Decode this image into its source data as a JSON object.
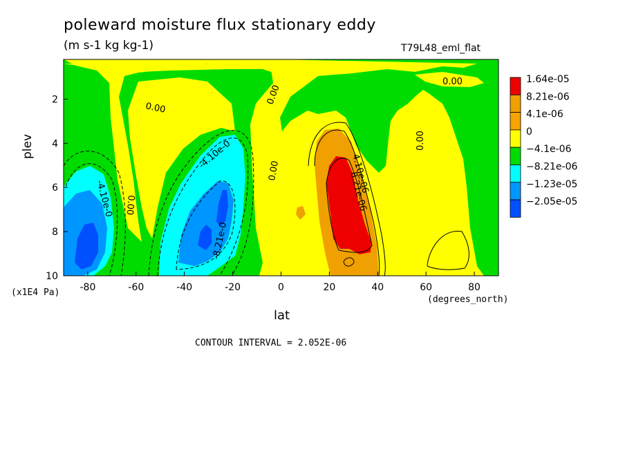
{
  "header": {
    "title": "poleward moisture flux stationary eddy",
    "units": "(m s-1 kg kg-1)",
    "dataset": "T79L48_eml_flat"
  },
  "axes": {
    "ylabel": "plev",
    "yunit": "(x1E4 Pa)",
    "xlabel": "lat",
    "xunit": "(degrees_north)"
  },
  "footer": {
    "contour_interval": "CONTOUR INTERVAL = 2.052E-06"
  },
  "chart_data": {
    "type": "heatmap",
    "title": "poleward moisture flux stationary eddy",
    "subtitle": "(m s-1 kg kg-1)",
    "xlabel": "lat",
    "ylabel": "plev",
    "xlim": [
      -90,
      90
    ],
    "ylim": [
      10,
      0.2
    ],
    "xticks": [
      -80,
      -60,
      -40,
      -20,
      0,
      20,
      40,
      60,
      80
    ],
    "yticks": [
      2,
      4,
      6,
      8,
      10
    ],
    "contour_interval": 2.052e-06,
    "legend": {
      "placement": "right",
      "levels": [
        {
          "label": "1.64e-05",
          "color": "#ee0000"
        },
        {
          "label": "8.21e-06",
          "color": "#f0a000"
        },
        {
          "label": "4.1e-06",
          "color": "#f7a300"
        },
        {
          "label": "0",
          "color": "#ffff00"
        },
        {
          "label": "−4.1e-06",
          "color": "#00dc00"
        },
        {
          "label": "−8.21e-06",
          "color": "#00ffff"
        },
        {
          "label": "−1.23e-05",
          "color": "#0096ff"
        },
        {
          "label": "−2.05e-05",
          "color": "#0050ff"
        }
      ]
    },
    "contour_labels": [
      "0.00",
      "0.00",
      "0.00",
      "0.00",
      "0.00",
      "0.00",
      "-4.10e-0",
      "-4.10e-0",
      "-8.21e-0",
      "4.10e-06",
      "8.21e-06"
    ],
    "features": [
      {
        "sign": "negative",
        "lat": -82,
        "plev": 8.5,
        "min_level": "−2.05e-05"
      },
      {
        "sign": "negative",
        "lat": -32,
        "plev": 8.2,
        "min_level": "−1.23e-05"
      },
      {
        "sign": "negative",
        "lat": -25,
        "plev": 6.8,
        "min_level": "−1.23e-05"
      },
      {
        "sign": "positive",
        "lat": 28,
        "plev": 6.5,
        "max_level": "1.64e-05"
      }
    ]
  }
}
